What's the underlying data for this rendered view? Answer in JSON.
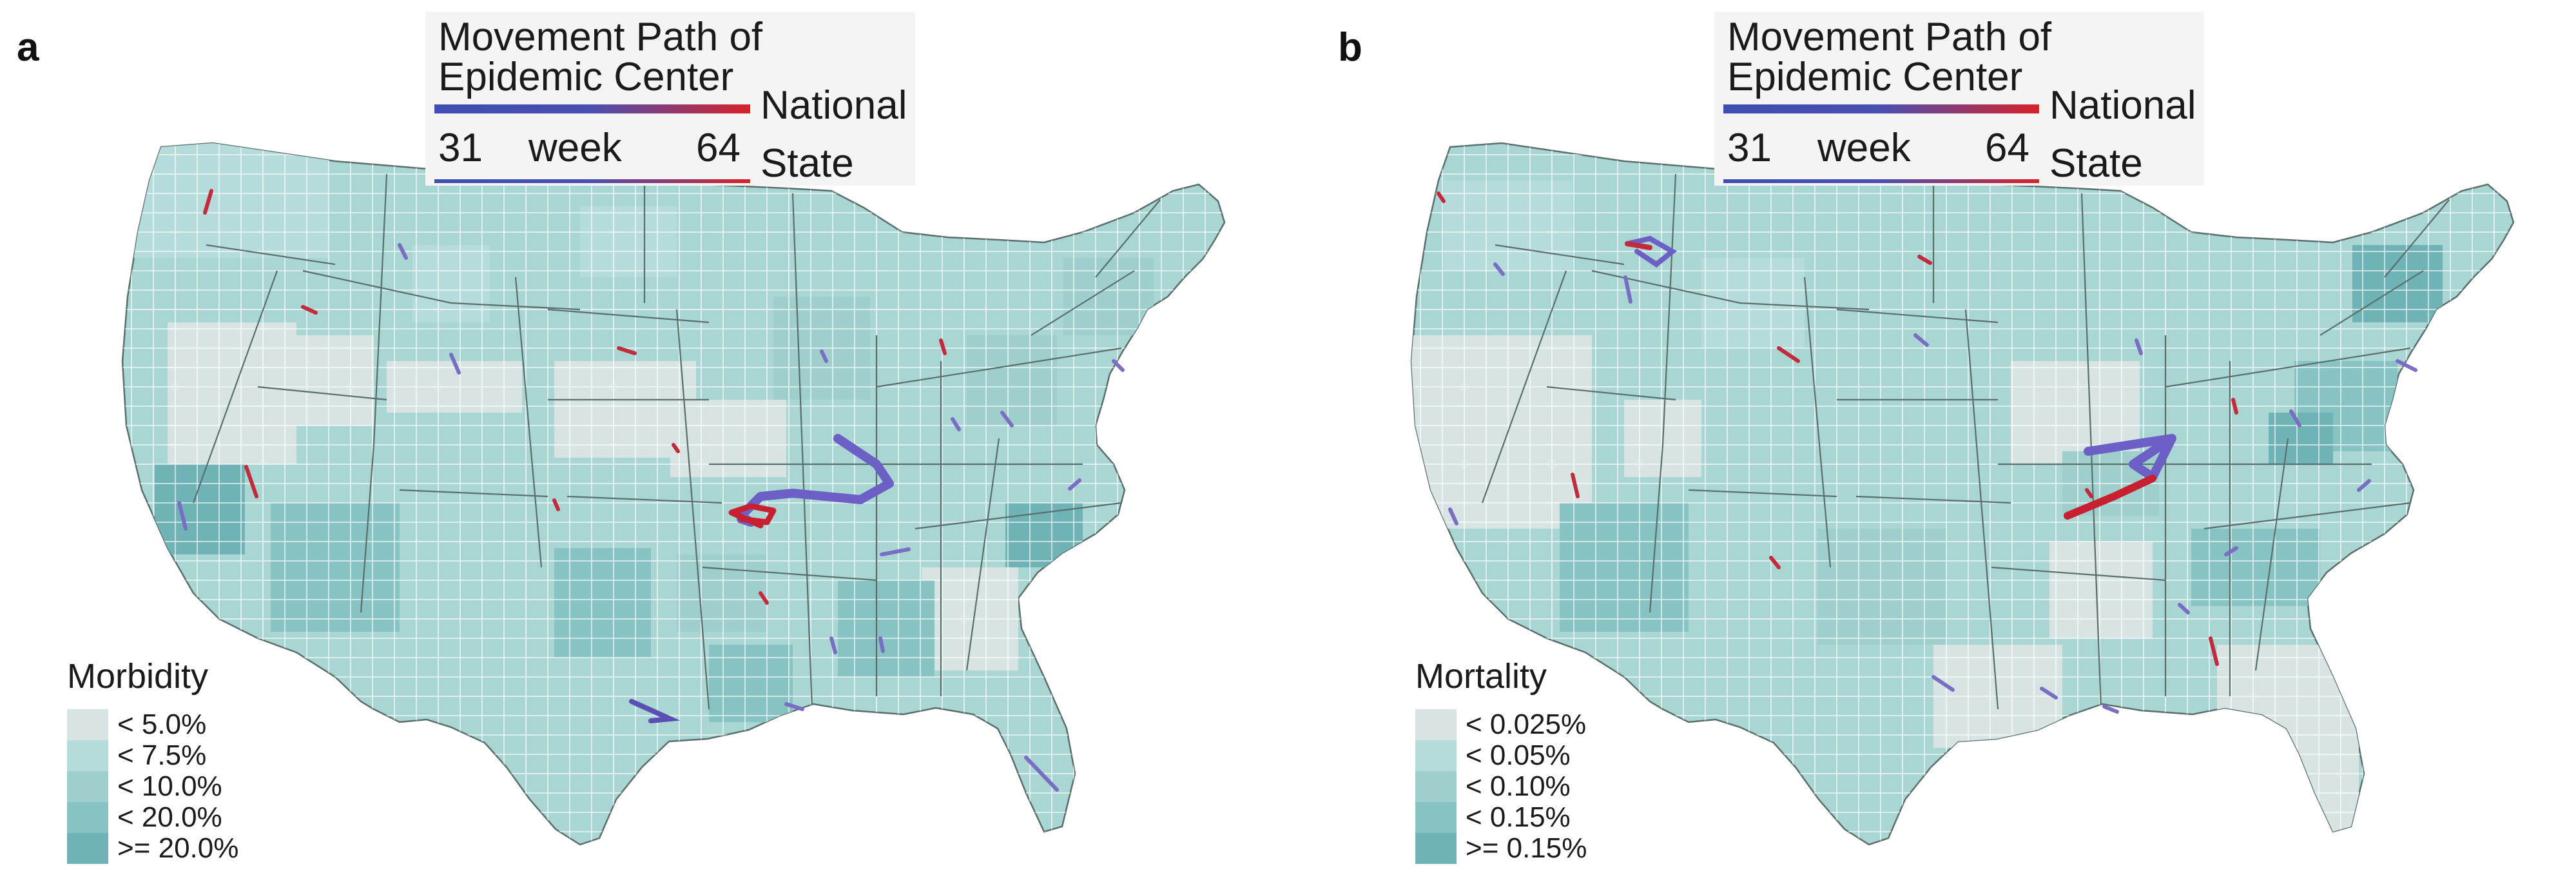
{
  "colors": {
    "nation": "#a9d6d2",
    "county_lines": "#ffffff",
    "state_lines": "#5a6e6c",
    "week_start": "#3f4fb3",
    "week_end": "#d8222a",
    "legend_scale": [
      "#d7e4e3",
      "#b5dcda",
      "#9fcfcd",
      "#88c3c3",
      "#6fb3b7"
    ]
  },
  "panels": [
    {
      "letter": "a",
      "title_line1": "Movement Path of",
      "title_line2": "Epidemic Center",
      "national_label": "National",
      "state_label": "State",
      "week_start": "31",
      "week_word": "week",
      "week_end": "64",
      "legend": {
        "title": "Morbidity",
        "items": [
          "< 5.0%",
          "< 7.5%",
          "< 10.0%",
          "< 20.0%",
          ">= 20.0%"
        ]
      }
    },
    {
      "letter": "b",
      "title_line1": "Movement Path of",
      "title_line2": "Epidemic Center",
      "national_label": "National",
      "state_label": "State",
      "week_start": "31",
      "week_word": "week",
      "week_end": "64",
      "legend": {
        "title": "Mortality",
        "items": [
          "< 0.025%",
          "< 0.05%",
          "< 0.10%",
          "< 0.15%",
          ">= 0.15%"
        ]
      }
    }
  ]
}
